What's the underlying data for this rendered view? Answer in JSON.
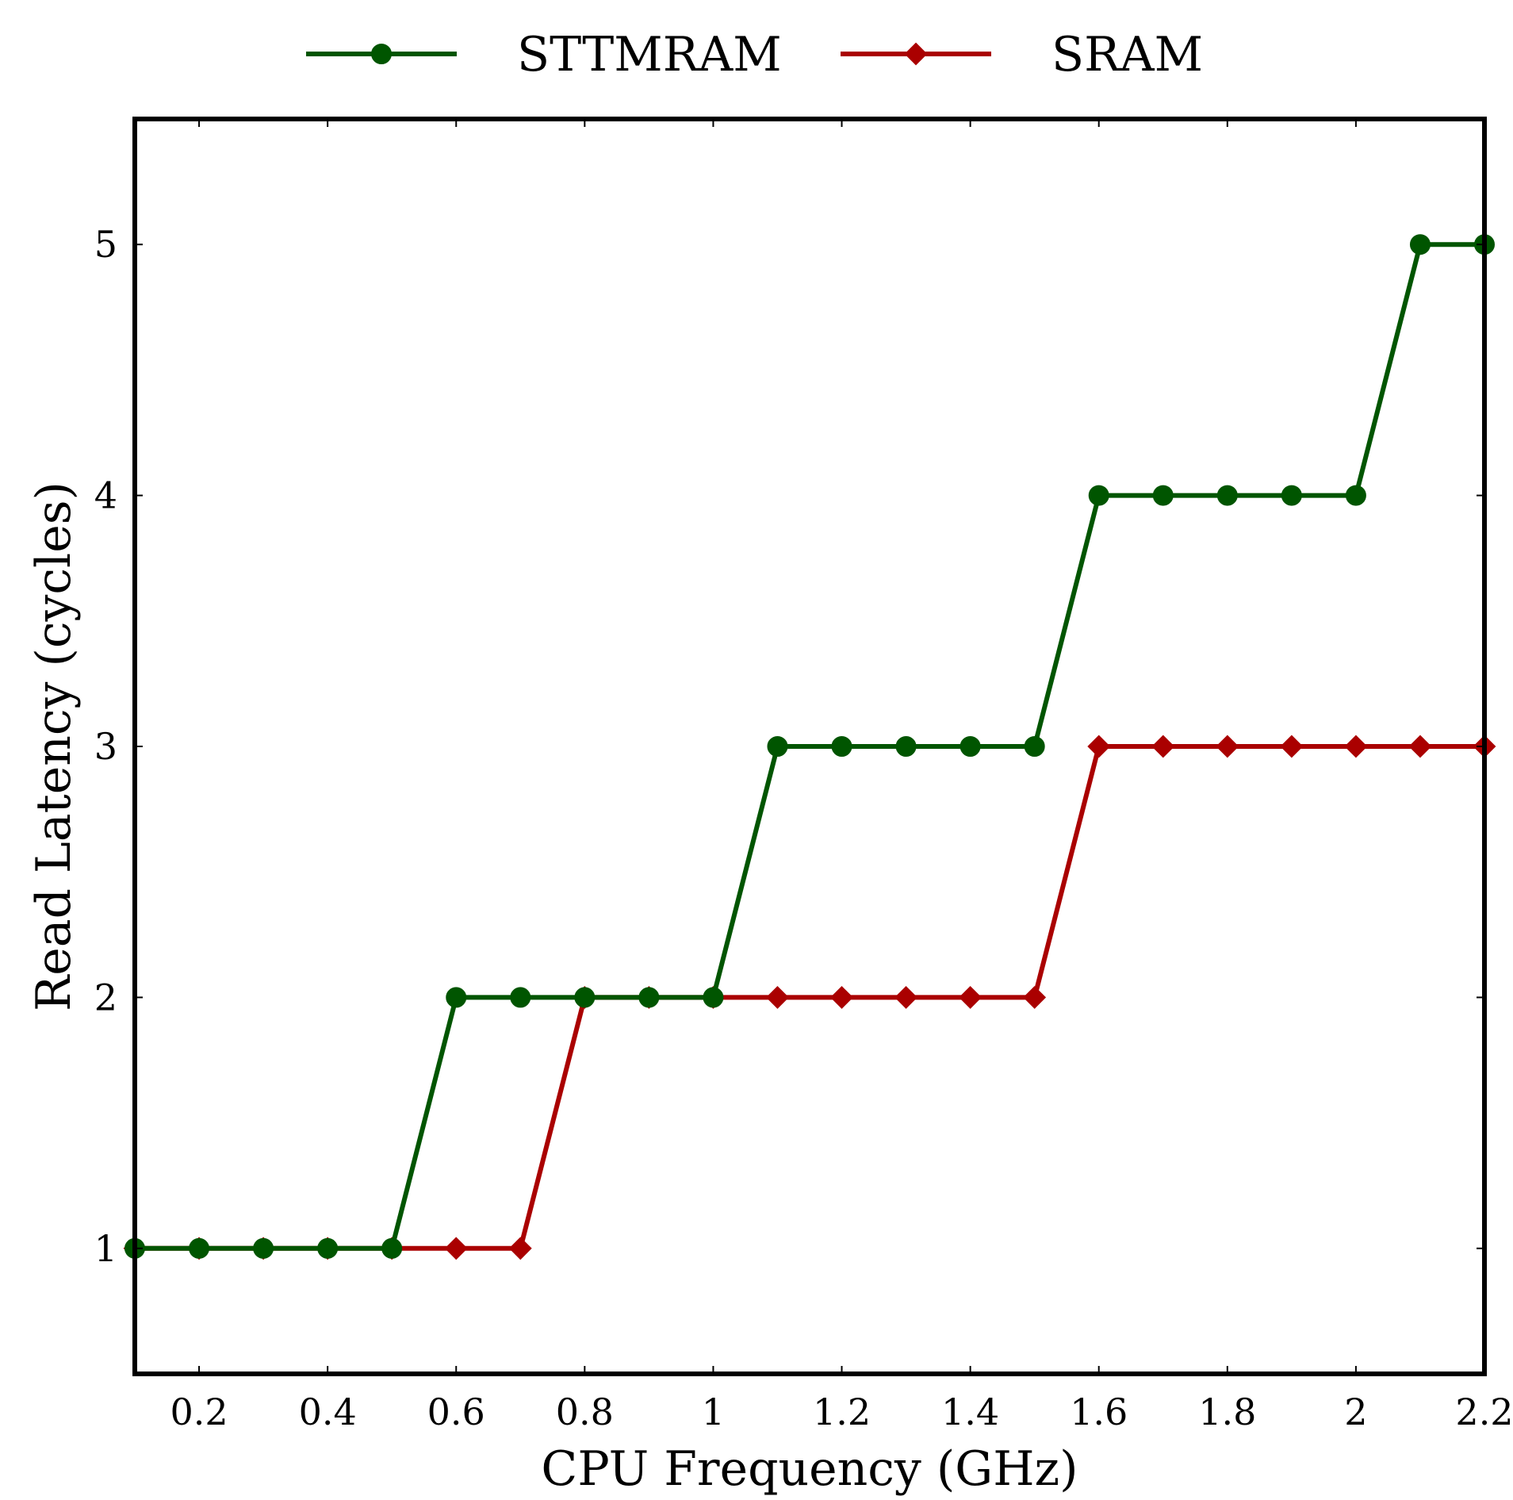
{
  "chart_data": {
    "type": "line",
    "title": "",
    "xlabel": "CPU Frequency (GHz)",
    "ylabel": "Read Latency (cycles)",
    "xlim": [
      0.1,
      2.2
    ],
    "ylim": [
      0.5,
      5.5
    ],
    "x_ticks": [
      0.2,
      0.4,
      0.6,
      0.8,
      1,
      1.2,
      1.4,
      1.6,
      1.8,
      2,
      2.2
    ],
    "x_tick_labels": [
      "0.2",
      "0.4",
      "0.6",
      "0.8",
      "1",
      "1.2",
      "1.4",
      "1.6",
      "1.8",
      "2",
      "2.2"
    ],
    "y_ticks": [
      1,
      2,
      3,
      4,
      5
    ],
    "y_tick_labels": [
      "1",
      "2",
      "3",
      "4",
      "5"
    ],
    "grid": false,
    "legend_position": "top-center",
    "x": [
      0.1,
      0.2,
      0.3,
      0.4,
      0.5,
      0.6,
      0.7,
      0.8,
      0.9,
      1.0,
      1.1,
      1.2,
      1.3,
      1.4,
      1.5,
      1.6,
      1.7,
      1.8,
      1.9,
      2.0,
      2.1,
      2.2
    ],
    "series": [
      {
        "name": "SRAM",
        "color": "#aa0000",
        "marker": "diamond",
        "values": [
          1,
          1,
          1,
          1,
          1,
          1,
          1,
          2,
          2,
          2,
          2,
          2,
          2,
          2,
          2,
          3,
          3,
          3,
          3,
          3,
          3,
          3
        ]
      },
      {
        "name": "STTMRAM",
        "color": "#005500",
        "marker": "circle",
        "values": [
          1,
          1,
          1,
          1,
          1,
          2,
          2,
          2,
          2,
          2,
          3,
          3,
          3,
          3,
          3,
          4,
          4,
          4,
          4,
          4,
          5,
          5
        ]
      }
    ],
    "legend": [
      {
        "label": "STTMRAM",
        "color": "#005500",
        "marker": "circle"
      },
      {
        "label": "SRAM",
        "color": "#aa0000",
        "marker": "diamond"
      }
    ]
  }
}
